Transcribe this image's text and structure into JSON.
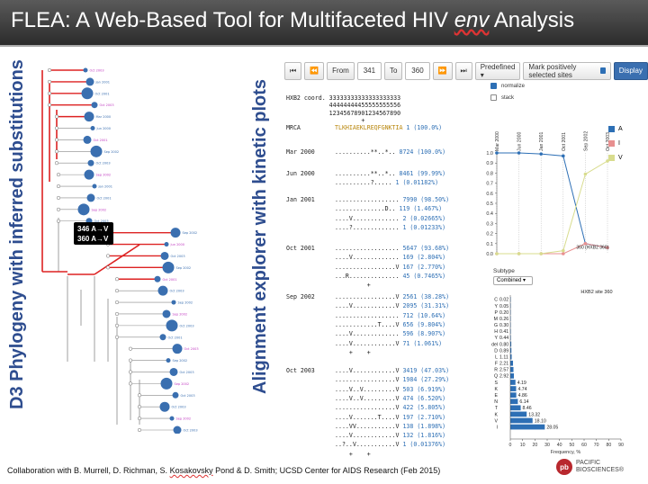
{
  "slide": {
    "title_main": "FLEA: A Web-Based Tool for Multifaceted HIV ",
    "title_env": "env",
    "title_tail": " Analysis",
    "left_label": "D3 Phylogeny with inferred substitutions",
    "middle_label": "Alignment explorer with kinetic plots",
    "footer_pre": "Collaboration with B. Murrell,  D. Richman, S. ",
    "footer_under": "Kosakovsky",
    "footer_post": " Pond & D. Smith; UCSD Center for AIDS Research (Feb 2015)",
    "logo_mark": "pb",
    "logo_line1": "PACIFIC",
    "logo_line2": "BIOSCIENCES®"
  },
  "tree": {
    "callout_line1": "346 A→V",
    "callout_line2": "360 A→V",
    "tip_labels": [
      "Oct 2003",
      "Jan 2001",
      "Oct 2001",
      "Oct 2003",
      "Mar 2000",
      "Jun 2000",
      "Oct 2001",
      "Sep 2002",
      "Oct 2003",
      "Sep 2002",
      "Jan 2001",
      "Oct 2001",
      "Sep 2002",
      "Oct 2003",
      "Sep 2002",
      "Jun 2000",
      "Oct 2003",
      "Sep 2002",
      "Oct 2001",
      "Oct 2003",
      "Sep 2002",
      "Sep 2002",
      "Oct 2003",
      "Oct 2001",
      "Oct 2003",
      "Sep 2002",
      "Oct 2003",
      "Sep 2002",
      "Oct 2003",
      "Oct 2003",
      "Sep 2002",
      "Oct 2003"
    ]
  },
  "toolbar": {
    "first": "⏮",
    "prev": "⏪",
    "from_label": "From",
    "from_value": "341",
    "to_label": "To",
    "to_value": "360",
    "next": "⏩",
    "last": "⏭",
    "predefined": "Predefined ▾",
    "mark_label": "Mark positively selected sites",
    "display": "Display",
    "normalize": "normalize",
    "stack": "stack"
  },
  "alignment": {
    "coord_label": "HXB2 coord.",
    "coord_row1": "33333333333333333333",
    "coord_row2": "44444444455555555556",
    "coord_row3": "12345678901234567890",
    "coord_plus": "         +",
    "mrca_label": "MRCA",
    "mrca_seq": "TLKHIAEKLREQFGNKTIA",
    "mrca_count": "1 (100.0%)",
    "groups": [
      {
        "label": "Mar 2000",
        "rows": [
          {
            "seq": "..........**..*..",
            "count": "8724 (100.0%)"
          }
        ]
      },
      {
        "label": "Jun 2000",
        "rows": [
          {
            "seq": "..........**..*..",
            "count": "8461 (99.99%)"
          },
          {
            "seq": "..........?.....",
            "count": "1 (0.01182%)"
          }
        ]
      },
      {
        "label": "Jan 2001",
        "rows": [
          {
            "seq": "..................",
            "count": "7990 (98.50%)"
          },
          {
            "seq": "..............D..",
            "count": "119 (1.467%)"
          },
          {
            "seq": "....V.............",
            "count": "2 (0.02665%)"
          },
          {
            "seq": "....?.............",
            "count": "1 (0.01233%)"
          }
        ]
      },
      {
        "label": "Oct 2001",
        "rows": [
          {
            "seq": "..................",
            "count": "5647 (93.68%)"
          },
          {
            "seq": "....V.............",
            "count": "169 (2.804%)"
          },
          {
            "seq": ".................V",
            "count": "167 (2.770%)"
          },
          {
            "seq": "...R..............",
            "count": "45 (0.7465%)"
          }
        ],
        "plus": "         +"
      },
      {
        "label": "Sep 2002",
        "rows": [
          {
            "seq": ".................V",
            "count": "2561 (38.28%)"
          },
          {
            "seq": "....V............V",
            "count": "2095 (31.31%)"
          },
          {
            "seq": "..................",
            "count": "712 (10.64%)"
          },
          {
            "seq": "............T....V",
            "count": "656 (9.804%)"
          },
          {
            "seq": "....V.............",
            "count": "596 (8.907%)"
          },
          {
            "seq": "....V............V",
            "count": "71 (1.061%)"
          }
        ],
        "plus": "    +    +"
      },
      {
        "label": "Oct 2003",
        "rows": [
          {
            "seq": "....V............V",
            "count": "3419 (47.03%)"
          },
          {
            "seq": ".................V",
            "count": "1984 (27.29%)"
          },
          {
            "seq": "....V..V.........V",
            "count": "503 (6.919%)"
          },
          {
            "seq": "....V..V.........V",
            "count": "474 (6.520%)"
          },
          {
            "seq": ".................V",
            "count": "422 (5.805%)"
          },
          {
            "seq": "....V.......T....V",
            "count": "197 (2.710%)"
          },
          {
            "seq": "....VV...........V",
            "count": "138 (1.898%)"
          },
          {
            "seq": "....V............V",
            "count": "132 (1.816%)"
          },
          {
            "seq": "..?..V...........V",
            "count": "1 (0.01376%)"
          }
        ],
        "plus": "    +    +"
      }
    ]
  },
  "kinetic": {
    "legend": [
      {
        "label": "A",
        "color": "#2d6fb5"
      },
      {
        "label": "I",
        "color": "#e89090"
      },
      {
        "label": "V",
        "color": "#d8dc8e"
      }
    ],
    "timepoints": [
      "Mar 2000",
      "Jun 2000",
      "Jan 2001",
      "Oct 2001",
      "Sep 2002",
      "Oct 2003"
    ],
    "yticks": [
      "1.0",
      "0.9",
      "0.8",
      "0.7",
      "0.6",
      "0.5",
      "0.4",
      "0.3",
      "0.2",
      "0.1",
      "0.0"
    ],
    "annotation": "360 (HXB2 360)"
  },
  "chart_data": [
    {
      "type": "line",
      "title": "",
      "x": [
        "Mar 2000",
        "Jun 2000",
        "Jan 2001",
        "Oct 2001",
        "Sep 2002",
        "Oct 2003"
      ],
      "series": [
        {
          "name": "A",
          "values": [
            1.0,
            1.0,
            0.99,
            0.97,
            0.1,
            0.06
          ]
        },
        {
          "name": "I",
          "values": [
            0.0,
            0.0,
            0.0,
            0.0,
            0.1,
            0.06
          ]
        },
        {
          "name": "V",
          "values": [
            0.0,
            0.0,
            0.0,
            0.03,
            0.79,
            0.92
          ]
        }
      ],
      "ylim": [
        0,
        1.0
      ]
    },
    {
      "type": "bar",
      "title": "HXB2 site 360",
      "subtitle_label": "Subtype",
      "subtype_select": "Combined ▾",
      "xlabel": "Frequency, %",
      "categories": [
        "C",
        "Y",
        "P",
        "M",
        "G",
        "H",
        "Y",
        "del",
        "D",
        "L",
        "F",
        "R",
        "Q",
        "S",
        "K",
        "E",
        "N",
        "T",
        "K",
        "V",
        "I"
      ],
      "values": [
        0.02,
        0.05,
        0.2,
        0.26,
        0.3,
        0.41,
        0.44,
        0.8,
        0.89,
        1.11,
        2.21,
        2.57,
        2.92,
        4.19,
        4.74,
        4.86,
        6.14,
        8.46,
        13.32,
        18.1,
        28.05
      ],
      "value_labels": [
        "0.02",
        "0.05",
        "0.20",
        "0.26",
        "0.30",
        "0.41",
        "0.44",
        "0.80",
        "0.89",
        "1.11",
        "2.21",
        "2.57",
        "2.92",
        "4.19",
        "4.74",
        "4.86",
        "6.14",
        "8.46",
        "13.32",
        "18.10",
        "28.05"
      ],
      "xticks": [
        "0",
        "10",
        "20",
        "30",
        "40",
        "50",
        "60",
        "70",
        "80",
        "90"
      ],
      "xlim": [
        0,
        90
      ]
    }
  ]
}
